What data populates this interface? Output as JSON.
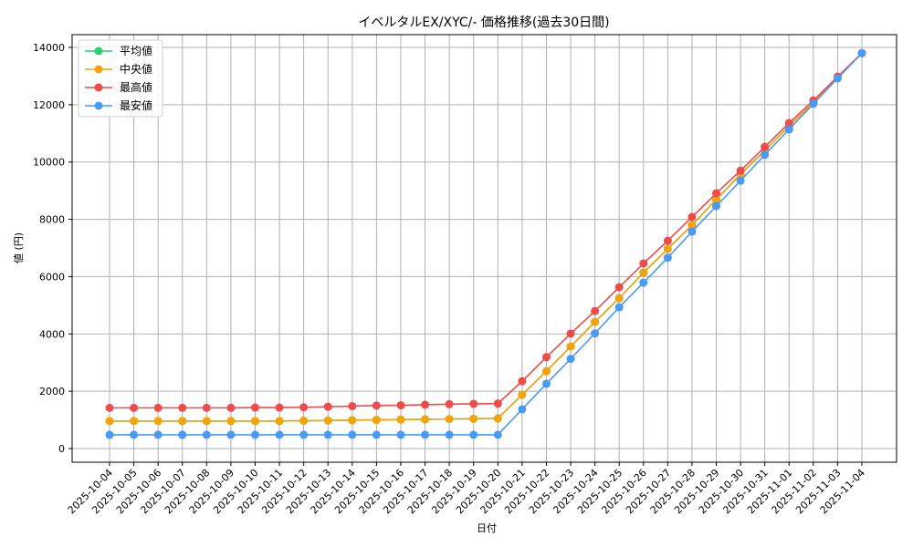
{
  "chart_data": {
    "type": "line",
    "title": "イベルタルEX/XYC/- 価格推移(過去30日間)",
    "xlabel": "日付",
    "ylabel": "値 (円)",
    "ylim": [
      0,
      14000
    ],
    "yticks": [
      0,
      2000,
      4000,
      6000,
      8000,
      10000,
      12000,
      14000
    ],
    "grid": true,
    "legend_position": "upper left",
    "x": [
      "2025-10-04",
      "2025-10-05",
      "2025-10-06",
      "2025-10-07",
      "2025-10-08",
      "2025-10-09",
      "2025-10-10",
      "2025-10-11",
      "2025-10-12",
      "2025-10-13",
      "2025-10-14",
      "2025-10-15",
      "2025-10-16",
      "2025-10-17",
      "2025-10-18",
      "2025-10-19",
      "2025-10-20",
      "2025-10-21",
      "2025-10-22",
      "2025-10-23",
      "2025-10-24",
      "2025-10-25",
      "2025-10-26",
      "2025-10-27",
      "2025-10-28",
      "2025-10-29",
      "2025-10-30",
      "2025-10-31",
      "2025-11-01",
      "2025-11-02",
      "2025-11-03",
      "2025-11-04"
    ],
    "series": [
      {
        "name": "平均値",
        "color": "#2ecc71",
        "values": [
          960,
          960,
          960,
          960,
          960,
          960,
          960,
          960,
          970,
          980,
          990,
          1000,
          1010,
          1020,
          1030,
          1040,
          1050,
          1880,
          2700,
          3560,
          4420,
          5250,
          6140,
          6970,
          7800,
          8690,
          9570,
          10400,
          11260,
          12080,
          12950,
          13800
        ]
      },
      {
        "name": "中央値",
        "color": "#f5a30b",
        "values": [
          960,
          960,
          960,
          960,
          960,
          960,
          960,
          960,
          970,
          980,
          990,
          1000,
          1010,
          1020,
          1030,
          1040,
          1050,
          1880,
          2700,
          3560,
          4420,
          5250,
          6140,
          6970,
          7800,
          8690,
          9570,
          10400,
          11260,
          12080,
          12950,
          13800
        ]
      },
      {
        "name": "最高値",
        "color": "#f04b4b",
        "values": [
          1420,
          1420,
          1420,
          1420,
          1420,
          1420,
          1430,
          1430,
          1440,
          1460,
          1480,
          1500,
          1510,
          1530,
          1550,
          1560,
          1570,
          2350,
          3190,
          4010,
          4800,
          5630,
          6460,
          7250,
          8080,
          8910,
          9700,
          10530,
          11360,
          12150,
          12980,
          13800
        ]
      },
      {
        "name": "最安値",
        "color": "#4a9af5",
        "values": [
          480,
          480,
          480,
          480,
          480,
          480,
          480,
          480,
          480,
          480,
          480,
          480,
          480,
          480,
          480,
          480,
          480,
          1370,
          2260,
          3130,
          4020,
          4930,
          5790,
          6660,
          7570,
          8460,
          9350,
          10250,
          11140,
          12030,
          12920,
          13800
        ]
      }
    ]
  }
}
